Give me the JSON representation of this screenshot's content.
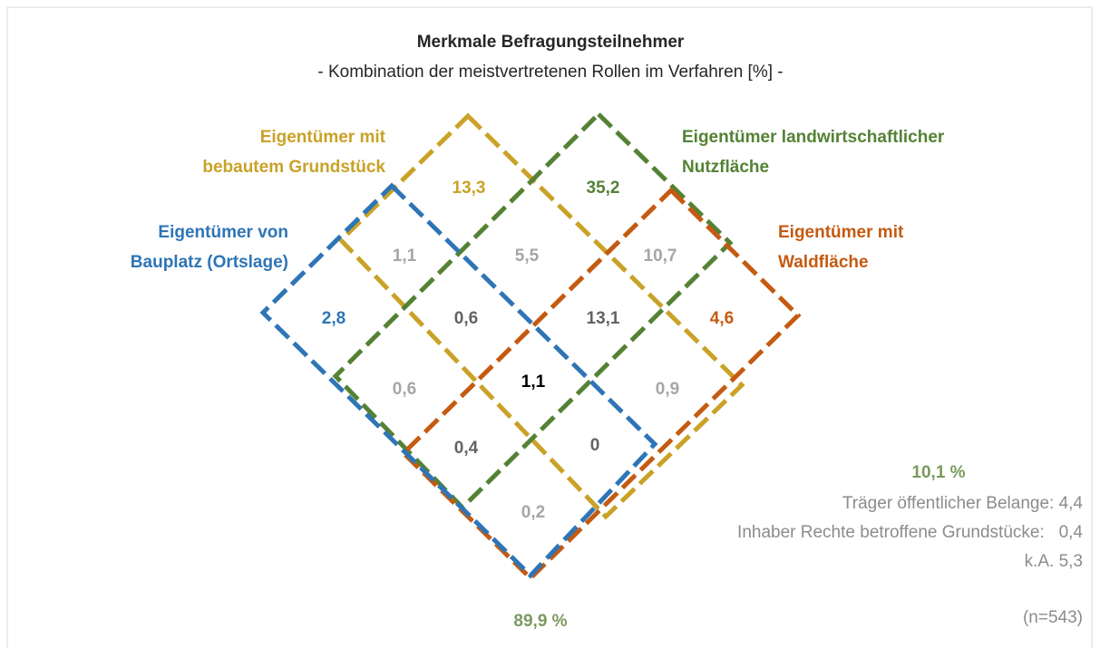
{
  "title": "Merkmale Befragungsteilnehmer",
  "subtitle": "- Kombination der meistvertretenen Rollen im Verfahren [%] -",
  "sets": [
    {
      "lines": [
        "Eigentümer mit",
        "bebautem Grundstück"
      ]
    },
    {
      "lines": [
        "Eigentümer landwirtschaftlicher",
        "Nutzfläche"
      ]
    },
    {
      "lines": [
        "Eigentümer von",
        "Bauplatz (Ortslage)"
      ]
    },
    {
      "lines": [
        "Eigentümer mit",
        "Waldfläche"
      ]
    }
  ],
  "regions": [
    "13,3",
    "35,2",
    "1,1",
    "5,5",
    "10,7",
    "2,8",
    "0,6",
    "13,1",
    "4,6",
    "0,6",
    "1,1",
    "0,9",
    "0,4",
    "0",
    "0,2"
  ],
  "total_in": "89,9 %",
  "total_out": "10,1 %",
  "others": [
    "Träger öffentlicher Belange: 4,4",
    "Inhaber Rechte betroffene Grundstücke:   0,4",
    "k.A. 5,3"
  ],
  "sample": "(n=543)"
}
